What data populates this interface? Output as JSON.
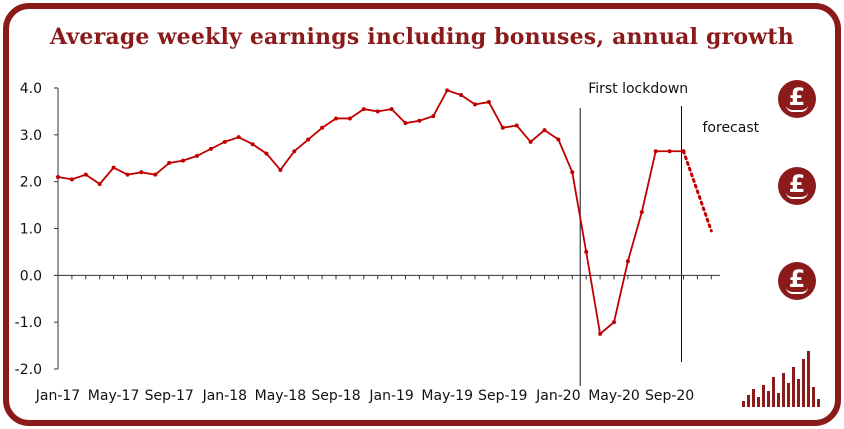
{
  "title": "Average weekly earnings including bonuses, annual growth",
  "icons": [
    "pound-hand-icon",
    "pound-hand-icon",
    "pound-hand-icon",
    "bar-chart-logo-icon"
  ],
  "colors": {
    "brand": "#8b1a1a",
    "line": "#c00000"
  },
  "chart_data": {
    "type": "line",
    "title": "Average weekly earnings including bonuses, annual growth",
    "xlabel": "",
    "ylabel": "",
    "ylim": [
      -2.0,
      4.0
    ],
    "yticks": [
      "4.0",
      "3.0",
      "2.0",
      "1.0",
      "0.0",
      "-1.0",
      "-2.0"
    ],
    "xtick_labels": [
      "Jan-17",
      "May-17",
      "Sep-17",
      "Jan-18",
      "May-18",
      "Sep-18",
      "Jan-19",
      "May-19",
      "Sep-19",
      "Jan-20",
      "May-20",
      "Sep-20"
    ],
    "annotations": [
      {
        "text": "First lockdown",
        "month": "Mar-20"
      },
      {
        "text": "forecast",
        "month": "Oct-20"
      }
    ],
    "grid": false,
    "series": [
      {
        "style": "solid",
        "x": [
          "Jan-17",
          "Feb-17",
          "Mar-17",
          "Apr-17",
          "May-17",
          "Jun-17",
          "Jul-17",
          "Aug-17",
          "Sep-17",
          "Oct-17",
          "Nov-17",
          "Dec-17",
          "Jan-18",
          "Feb-18",
          "Mar-18",
          "Apr-18",
          "May-18",
          "Jun-18",
          "Jul-18",
          "Aug-18",
          "Sep-18",
          "Oct-18",
          "Nov-18",
          "Dec-18",
          "Jan-19",
          "Feb-19",
          "Mar-19",
          "Apr-19",
          "May-19",
          "Jun-19",
          "Jul-19",
          "Aug-19",
          "Sep-19",
          "Oct-19",
          "Nov-19",
          "Dec-19",
          "Jan-20",
          "Feb-20",
          "Mar-20",
          "Apr-20",
          "May-20",
          "Jun-20",
          "Jul-20",
          "Aug-20",
          "Sep-20",
          "Oct-20"
        ],
        "y": [
          2.1,
          2.05,
          2.15,
          1.95,
          2.3,
          2.15,
          2.2,
          2.15,
          2.4,
          2.45,
          2.55,
          2.7,
          2.85,
          2.95,
          2.8,
          2.6,
          2.25,
          2.65,
          2.9,
          3.15,
          3.35,
          3.35,
          3.55,
          3.5,
          3.55,
          3.25,
          3.3,
          3.4,
          3.95,
          3.85,
          3.65,
          3.7,
          3.15,
          3.2,
          2.85,
          3.1,
          2.9,
          2.2,
          0.5,
          -1.25,
          -1.0,
          0.3,
          1.35,
          2.65,
          2.65,
          2.65
        ]
      },
      {
        "style": "dotted",
        "x": [
          "Oct-20",
          "Nov-20",
          "Dec-20"
        ],
        "y": [
          2.65,
          1.8,
          0.95
        ]
      }
    ]
  }
}
